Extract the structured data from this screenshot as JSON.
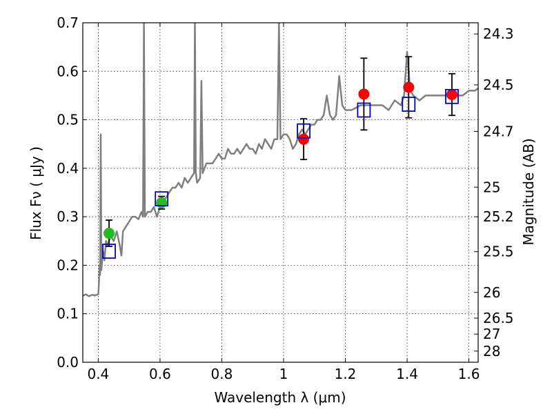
{
  "chart_data": {
    "type": "scatter",
    "xlabel": "Wavelength  λ (μm)",
    "ylabel": "Flux  Fν  ( μJy )",
    "ylabel_right": "Magnitude (AB)",
    "xlim": [
      0.35,
      1.63
    ],
    "ylim": [
      0.0,
      0.7
    ],
    "grid": true,
    "x_ticks": [
      0.4,
      0.6,
      0.8,
      1.0,
      1.2,
      1.4,
      1.6
    ],
    "x_tick_labels": [
      "0.4",
      "0.6",
      "0.8",
      "1",
      "1.2",
      "1.4",
      "1.6"
    ],
    "y_ticks": [
      0.0,
      0.1,
      0.2,
      0.3,
      0.4,
      0.5,
      0.6,
      0.7
    ],
    "y_tick_labels": [
      "0.0",
      "0.1",
      "0.2",
      "0.3",
      "0.4",
      "0.5",
      "0.6",
      "0.7"
    ],
    "right_ticks": [
      {
        "label": "24.3",
        "flux": 0.677
      },
      {
        "label": "24.5",
        "flux": 0.572
      },
      {
        "label": "24.7",
        "flux": 0.476
      },
      {
        "label": "25",
        "flux": 0.361
      },
      {
        "label": "25.2",
        "flux": 0.3
      },
      {
        "label": "25.5",
        "flux": 0.228
      },
      {
        "label": "26",
        "flux": 0.144
      },
      {
        "label": "26.5",
        "flux": 0.091
      },
      {
        "label": "27",
        "flux": 0.058
      },
      {
        "label": "28",
        "flux": 0.023
      }
    ],
    "series": [
      {
        "kind": "line",
        "color": "#7f7f7f",
        "points": [
          [
            0.35,
            0.137
          ],
          [
            0.36,
            0.14
          ],
          [
            0.37,
            0.136
          ],
          [
            0.38,
            0.139
          ],
          [
            0.39,
            0.138
          ],
          [
            0.4,
            0.14
          ],
          [
            0.402,
            0.16
          ],
          [
            0.404,
            0.2
          ],
          [
            0.406,
            0.18
          ],
          [
            0.408,
            0.47
          ],
          [
            0.41,
            0.19
          ],
          [
            0.415,
            0.23
          ],
          [
            0.42,
            0.21
          ],
          [
            0.425,
            0.25
          ],
          [
            0.43,
            0.24
          ],
          [
            0.44,
            0.26
          ],
          [
            0.45,
            0.25
          ],
          [
            0.46,
            0.27
          ],
          [
            0.47,
            0.24
          ],
          [
            0.475,
            0.22
          ],
          [
            0.48,
            0.27
          ],
          [
            0.49,
            0.28
          ],
          [
            0.5,
            0.29
          ],
          [
            0.51,
            0.3
          ],
          [
            0.52,
            0.3
          ],
          [
            0.53,
            0.295
          ],
          [
            0.54,
            0.31
          ],
          [
            0.545,
            0.3
          ],
          [
            0.548,
            0.7
          ],
          [
            0.551,
            0.3
          ],
          [
            0.56,
            0.31
          ],
          [
            0.57,
            0.31
          ],
          [
            0.58,
            0.32
          ],
          [
            0.59,
            0.3
          ],
          [
            0.6,
            0.32
          ],
          [
            0.61,
            0.33
          ],
          [
            0.62,
            0.34
          ],
          [
            0.63,
            0.35
          ],
          [
            0.64,
            0.36
          ],
          [
            0.65,
            0.36
          ],
          [
            0.66,
            0.37
          ],
          [
            0.67,
            0.36
          ],
          [
            0.68,
            0.38
          ],
          [
            0.69,
            0.37
          ],
          [
            0.7,
            0.38
          ],
          [
            0.71,
            0.39
          ],
          [
            0.713,
            0.7
          ],
          [
            0.716,
            0.39
          ],
          [
            0.72,
            0.37
          ],
          [
            0.73,
            0.38
          ],
          [
            0.734,
            0.58
          ],
          [
            0.738,
            0.39
          ],
          [
            0.75,
            0.41
          ],
          [
            0.76,
            0.41
          ],
          [
            0.77,
            0.41
          ],
          [
            0.78,
            0.42
          ],
          [
            0.79,
            0.43
          ],
          [
            0.8,
            0.42
          ],
          [
            0.81,
            0.42
          ],
          [
            0.82,
            0.44
          ],
          [
            0.83,
            0.43
          ],
          [
            0.84,
            0.43
          ],
          [
            0.85,
            0.44
          ],
          [
            0.86,
            0.43
          ],
          [
            0.87,
            0.44
          ],
          [
            0.88,
            0.45
          ],
          [
            0.89,
            0.44
          ],
          [
            0.9,
            0.44
          ],
          [
            0.91,
            0.43
          ],
          [
            0.92,
            0.45
          ],
          [
            0.93,
            0.44
          ],
          [
            0.94,
            0.46
          ],
          [
            0.95,
            0.45
          ],
          [
            0.96,
            0.44
          ],
          [
            0.97,
            0.46
          ],
          [
            0.98,
            0.46
          ],
          [
            0.985,
            0.7
          ],
          [
            0.99,
            0.46
          ],
          [
            1.0,
            0.47
          ],
          [
            1.01,
            0.47
          ],
          [
            1.02,
            0.46
          ],
          [
            1.03,
            0.44
          ],
          [
            1.04,
            0.45
          ],
          [
            1.05,
            0.47
          ],
          [
            1.06,
            0.48
          ],
          [
            1.07,
            0.47
          ],
          [
            1.08,
            0.48
          ],
          [
            1.09,
            0.49
          ],
          [
            1.1,
            0.49
          ],
          [
            1.11,
            0.5
          ],
          [
            1.12,
            0.5
          ],
          [
            1.13,
            0.51
          ],
          [
            1.14,
            0.55
          ],
          [
            1.15,
            0.51
          ],
          [
            1.16,
            0.5
          ],
          [
            1.17,
            0.51
          ],
          [
            1.18,
            0.59
          ],
          [
            1.19,
            0.53
          ],
          [
            1.2,
            0.52
          ],
          [
            1.22,
            0.52
          ],
          [
            1.25,
            0.53
          ],
          [
            1.28,
            0.53
          ],
          [
            1.3,
            0.53
          ],
          [
            1.32,
            0.53
          ],
          [
            1.34,
            0.52
          ],
          [
            1.36,
            0.54
          ],
          [
            1.38,
            0.53
          ],
          [
            1.39,
            0.55
          ],
          [
            1.4,
            0.64
          ],
          [
            1.41,
            0.56
          ],
          [
            1.42,
            0.55
          ],
          [
            1.44,
            0.54
          ],
          [
            1.46,
            0.55
          ],
          [
            1.48,
            0.55
          ],
          [
            1.5,
            0.55
          ],
          [
            1.52,
            0.55
          ],
          [
            1.54,
            0.55
          ],
          [
            1.56,
            0.55
          ],
          [
            1.58,
            0.55
          ],
          [
            1.6,
            0.56
          ],
          [
            1.62,
            0.56
          ],
          [
            1.63,
            0.565
          ]
        ]
      },
      {
        "kind": "points",
        "marker": "circle",
        "color": "#22bb22",
        "points": [
          {
            "x": 0.435,
            "y": 0.266,
            "yerr": 0.027
          },
          {
            "x": 0.605,
            "y": 0.329,
            "yerr": 0.013
          }
        ]
      },
      {
        "kind": "points",
        "marker": "circle",
        "color": "#ff0000",
        "points": [
          {
            "x": 1.065,
            "y": 0.46,
            "yerr": 0.042
          },
          {
            "x": 1.26,
            "y": 0.553,
            "yerr": 0.074
          },
          {
            "x": 1.405,
            "y": 0.567,
            "yerr": 0.063
          },
          {
            "x": 1.545,
            "y": 0.552,
            "yerr": 0.043
          }
        ]
      },
      {
        "kind": "points",
        "marker": "square-open",
        "color": "#0000cc",
        "points": [
          {
            "x": 0.435,
            "y": 0.229
          },
          {
            "x": 0.605,
            "y": 0.337
          },
          {
            "x": 1.065,
            "y": 0.477
          },
          {
            "x": 1.26,
            "y": 0.52
          },
          {
            "x": 1.405,
            "y": 0.532
          },
          {
            "x": 1.545,
            "y": 0.548
          }
        ]
      }
    ]
  }
}
